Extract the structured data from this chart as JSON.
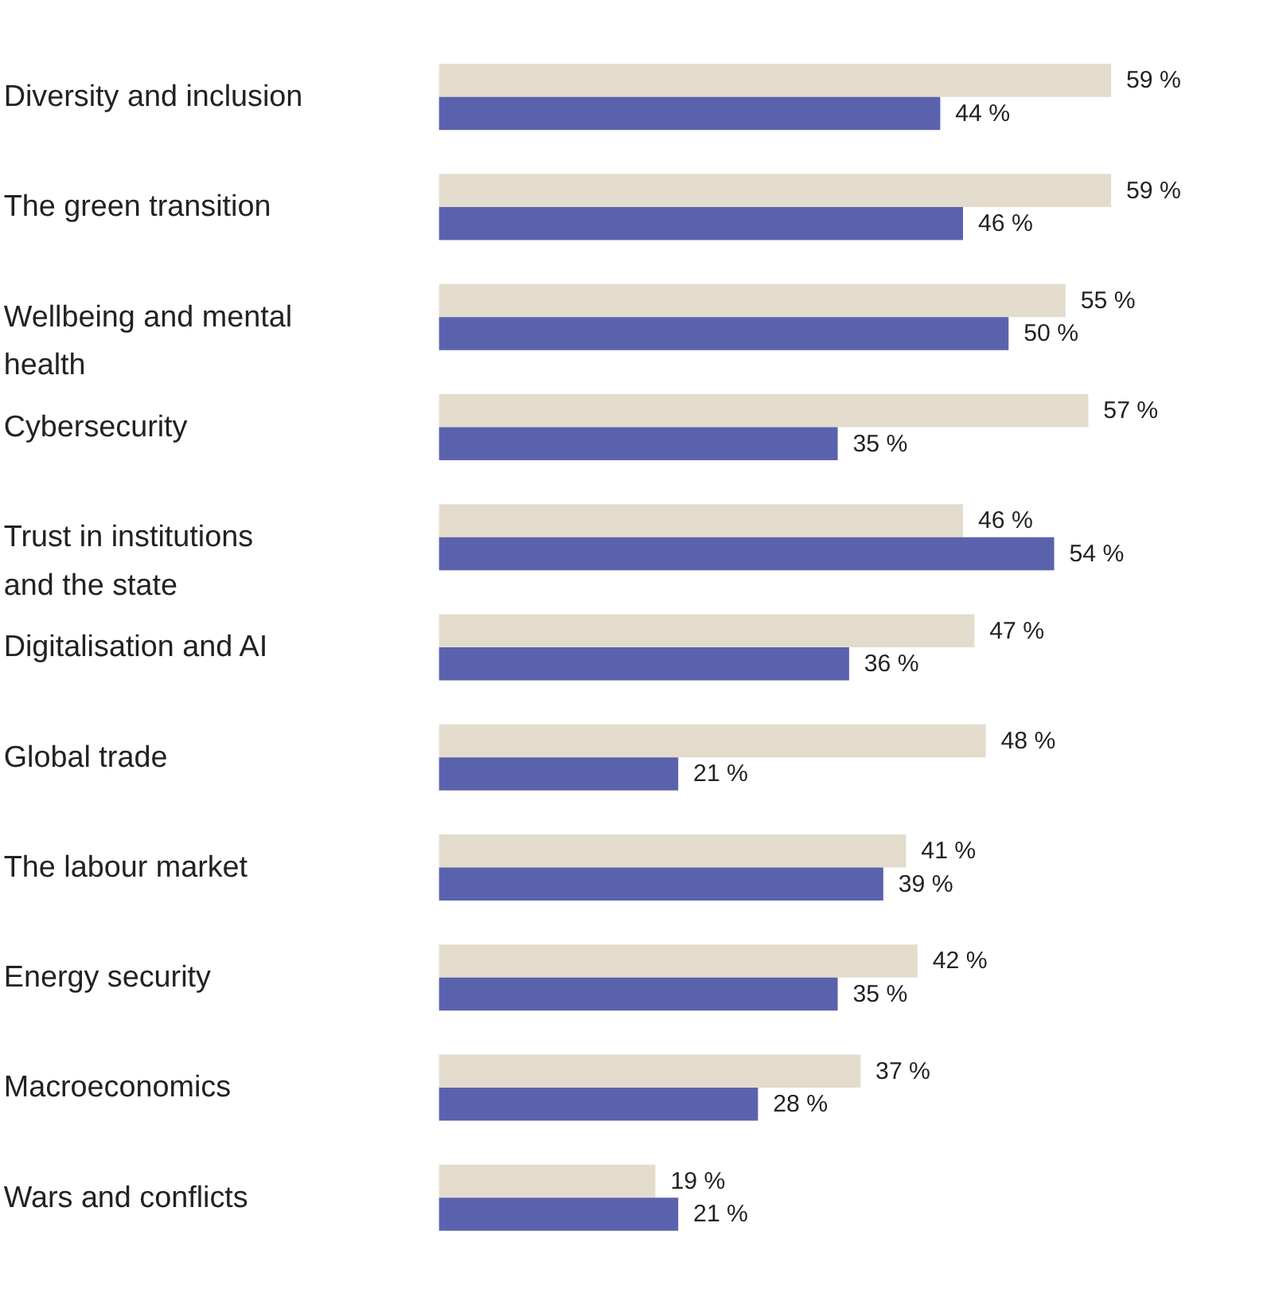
{
  "chart_data": {
    "type": "bar",
    "orientation": "horizontal",
    "categories": [
      "Diversity and inclusion",
      "The green transition",
      "Wellbeing and mental health",
      "Cybersecurity",
      "Trust in institutions and the state",
      "Digitalisation and AI",
      "Global trade",
      "The labour market",
      "Energy security",
      "Macroeconomics",
      "Wars and conflicts"
    ],
    "series": [
      {
        "color": "#e3dccc",
        "values": [
          59,
          59,
          55,
          57,
          46,
          47,
          48,
          41,
          42,
          37,
          19
        ],
        "value_labels": [
          "59 %",
          "59 %",
          "55 %",
          "57 %",
          "46 %",
          "47 %",
          "48 %",
          "41 %",
          "42 %",
          "37 %",
          "19 %"
        ]
      },
      {
        "color": "#5b62ad",
        "values": [
          44,
          46,
          50,
          35,
          54,
          36,
          21,
          39,
          35,
          28,
          21
        ],
        "value_labels": [
          "44 %",
          "46 %",
          "50 %",
          "35 %",
          "54 %",
          "36 %",
          "21 %",
          "39 %",
          "35 %",
          "28 %",
          "21 %"
        ]
      }
    ],
    "tick_labels": "y",
    "grid": false
  }
}
